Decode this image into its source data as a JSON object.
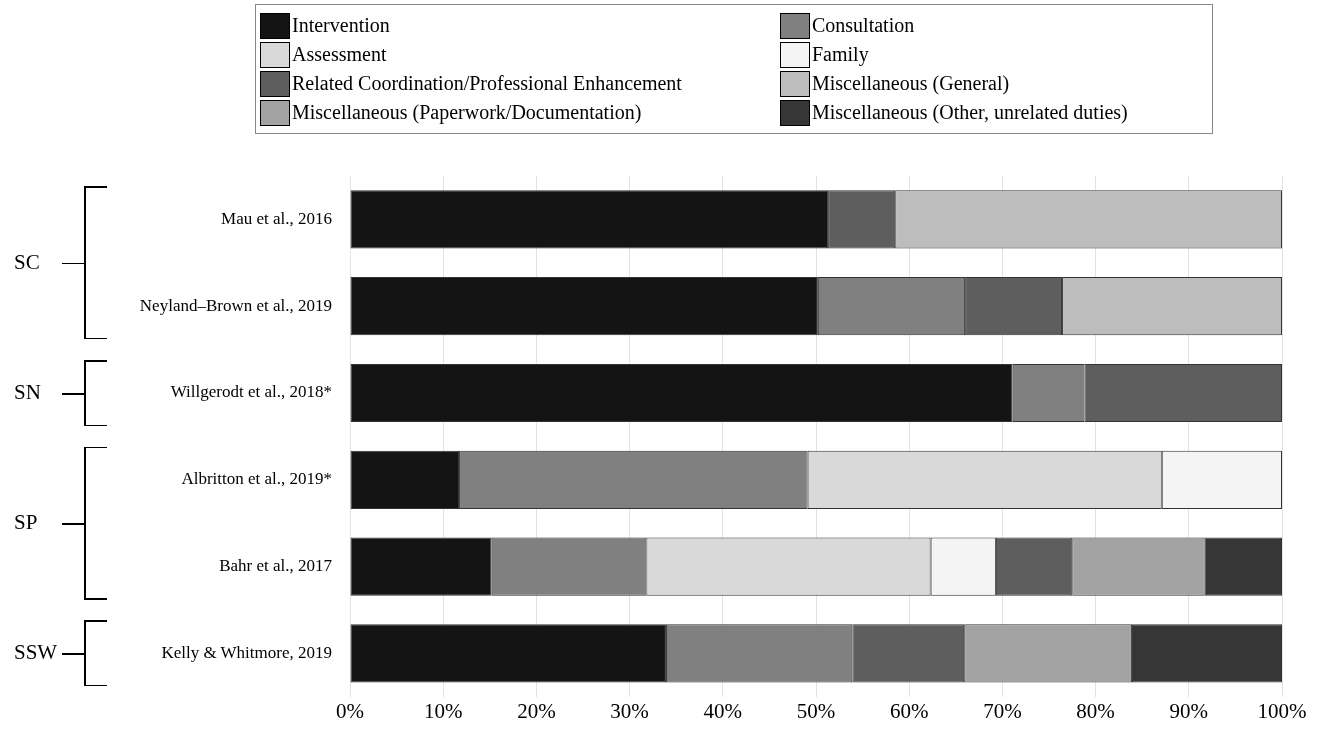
{
  "chart_data": {
    "type": "bar",
    "orientation": "horizontal",
    "stacked": true,
    "categories": [
      "Mau et al., 2016",
      "Neyland–Brown et al., 2019",
      "Willgerodt et al., 2018*",
      "Albritton et al., 2019*",
      "Bahr et al., 2017",
      "Kelly & Whitmore, 2019"
    ],
    "series": [
      {
        "name": "Intervention",
        "color": "#141414",
        "values": [
          51.3,
          50.2,
          71.1,
          11.7,
          15.2,
          33.9
        ]
      },
      {
        "name": "Consultation",
        "color": "#808080",
        "values": [
          0,
          15.8,
          7.7,
          37.4,
          16.6,
          20.0
        ]
      },
      {
        "name": "Assessment",
        "color": "#d9d9d9",
        "values": [
          0,
          0,
          0,
          38.0,
          30.5,
          0
        ]
      },
      {
        "name": "Family",
        "color": "#f4f4f4",
        "values": [
          0,
          0,
          0,
          12.9,
          7.0,
          0
        ]
      },
      {
        "name": "Related Coordination/Professional Enhancement",
        "color": "#5e5e5e",
        "values": [
          7.2,
          10.4,
          21.2,
          0,
          8.2,
          12.0
        ]
      },
      {
        "name": "Miscellaneous (General)",
        "color": "#bdbdbd",
        "values": [
          41.5,
          23.6,
          0,
          0,
          0,
          0
        ]
      },
      {
        "name": "Miscellaneous (Paperwork/Documentation)",
        "color": "#a3a3a3",
        "values": [
          0,
          0,
          0,
          0,
          14.2,
          18.0
        ]
      },
      {
        "name": "Miscellaneous (Other, unrelated duties)",
        "color": "#363636",
        "values": [
          0,
          0,
          0,
          0,
          8.3,
          16.1
        ]
      }
    ],
    "xlim": [
      0,
      100
    ],
    "xticks": [
      {
        "value": 0,
        "label": "0%"
      },
      {
        "value": 10,
        "label": "10%"
      },
      {
        "value": 20,
        "label": "20%"
      },
      {
        "value": 30,
        "label": "30%"
      },
      {
        "value": 40,
        "label": "40%"
      },
      {
        "value": 50,
        "label": "50%"
      },
      {
        "value": 60,
        "label": "60%"
      },
      {
        "value": 70,
        "label": "70%"
      },
      {
        "value": 80,
        "label": "80%"
      },
      {
        "value": 90,
        "label": "90%"
      },
      {
        "value": 100,
        "label": "100%"
      }
    ],
    "grid": "x",
    "legend": "top",
    "annotations": [
      "SC",
      "SN",
      "SP",
      "SSW"
    ]
  }
}
